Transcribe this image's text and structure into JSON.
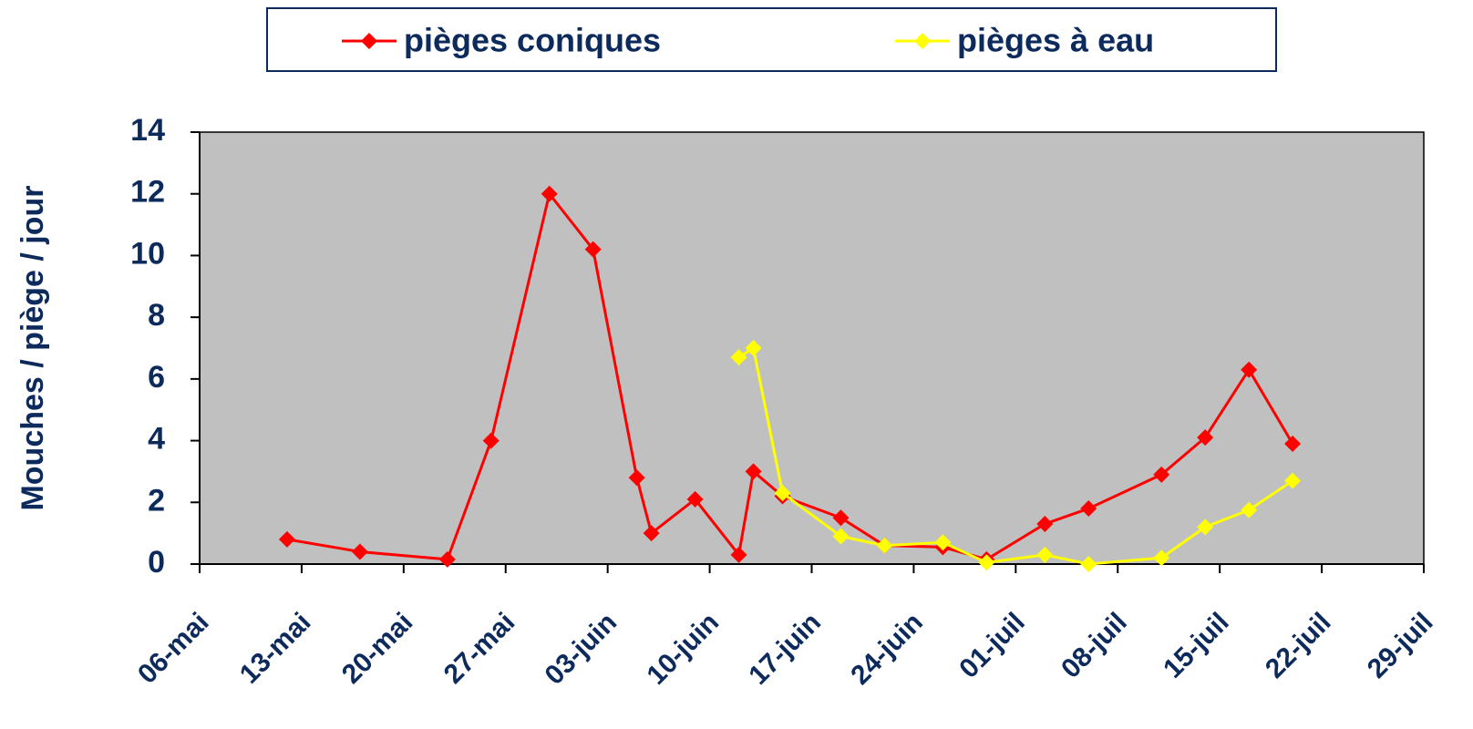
{
  "chart_data": {
    "type": "line",
    "y_label": "Mouches / piège / jour",
    "xlim": [
      0,
      84
    ],
    "xticks": [
      {
        "value": 0,
        "label": "06-mai"
      },
      {
        "value": 7,
        "label": "13-mai"
      },
      {
        "value": 14,
        "label": "20-mai"
      },
      {
        "value": 21,
        "label": "27-mai"
      },
      {
        "value": 28,
        "label": "03-juin"
      },
      {
        "value": 35,
        "label": "10-juin"
      },
      {
        "value": 42,
        "label": "17-juin"
      },
      {
        "value": 49,
        "label": "24-juin"
      },
      {
        "value": 56,
        "label": "01-juil"
      },
      {
        "value": 63,
        "label": "08-juil"
      },
      {
        "value": 70,
        "label": "15-juil"
      },
      {
        "value": 77,
        "label": "22-juil"
      },
      {
        "value": 84,
        "label": "29-juil"
      }
    ],
    "ylim": [
      0,
      14
    ],
    "yticks": [
      0,
      2,
      4,
      6,
      8,
      10,
      12,
      14
    ],
    "legend": "top",
    "plot_background": "#c0c0c0",
    "series": [
      {
        "name": "pièges coniques",
        "color": "#ff0000",
        "x": [
          6,
          11,
          17,
          20,
          24,
          27,
          30,
          31,
          34,
          37,
          38,
          40,
          44,
          47,
          51,
          54,
          58,
          61,
          66,
          69,
          72,
          75
        ],
        "values": [
          0.8,
          0.4,
          0.15,
          4.0,
          12.0,
          10.2,
          2.8,
          1.0,
          2.1,
          0.3,
          3.0,
          2.2,
          1.5,
          0.6,
          0.55,
          0.15,
          1.3,
          1.8,
          2.9,
          4.1,
          6.3,
          3.9
        ]
      },
      {
        "name": "pièges à eau",
        "color": "#ffff00",
        "x": [
          37,
          38,
          40,
          44,
          47,
          51,
          54,
          58,
          61,
          66,
          69,
          72,
          75
        ],
        "values": [
          6.7,
          7.0,
          2.3,
          0.9,
          0.6,
          0.7,
          0.05,
          0.3,
          0.0,
          0.2,
          1.2,
          1.75,
          2.7
        ]
      }
    ]
  }
}
